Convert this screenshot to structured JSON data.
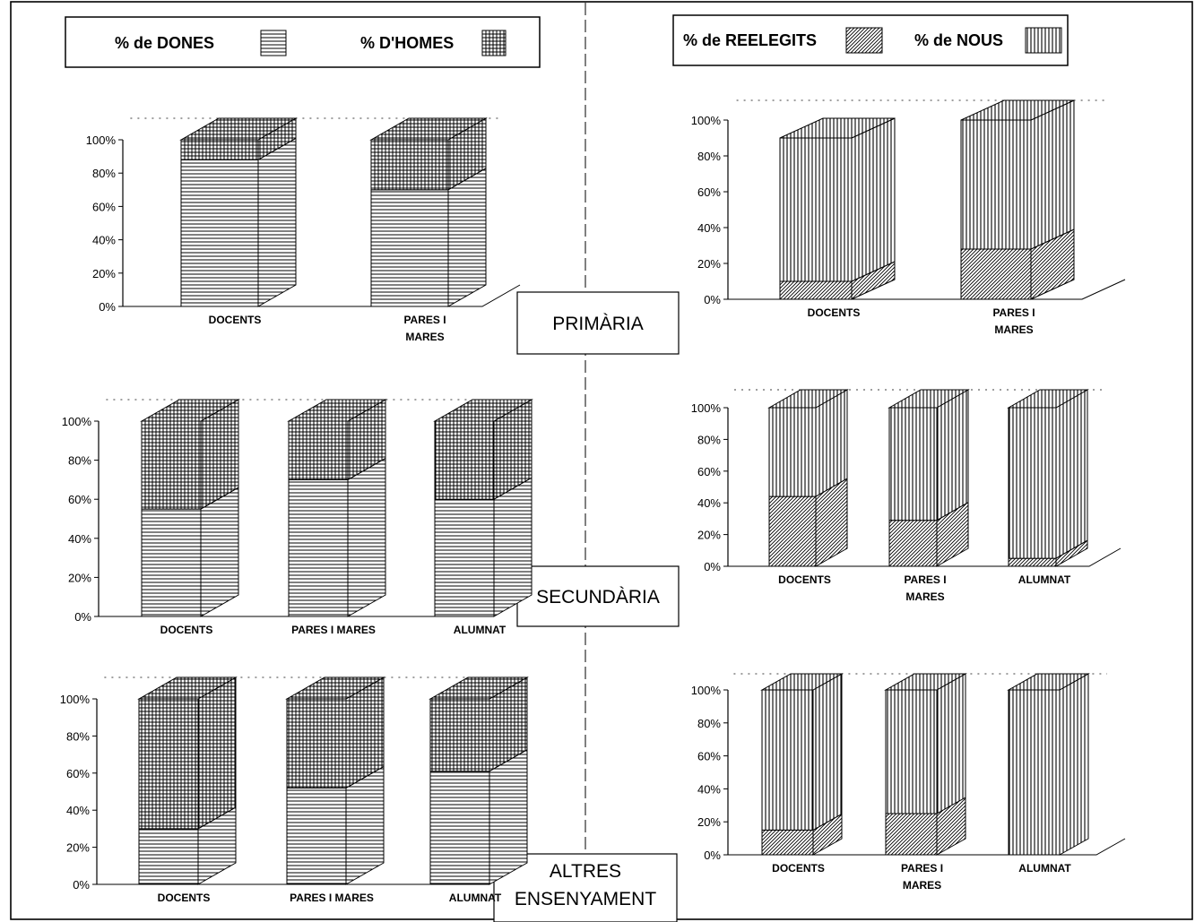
{
  "legends": {
    "gender": {
      "women_label": "% de DONES",
      "men_label": "% D'HOMES"
    },
    "election": {
      "reelected_label": "% de REELEGITS",
      "new_label": "% de NOUS"
    }
  },
  "levels": {
    "primaria": "PRIMÀRIA",
    "secundaria": "SECUNDÀRIA",
    "altres_line1": "ALTRES",
    "altres_line2": "ENSENYAMENT"
  },
  "chart_data": [
    {
      "id": "gender-primaria",
      "type": "bar",
      "stacked": true,
      "percent_stacked": true,
      "level": "PRIMÀRIA",
      "categories": [
        "DOCENTS",
        "PARES I MARES"
      ],
      "category_lines": [
        [
          "DOCENTS"
        ],
        [
          "PARES I",
          "MARES"
        ]
      ],
      "ylim": [
        0,
        100
      ],
      "yticks": [
        "0%",
        "20%",
        "40%",
        "60%",
        "80%",
        "100%"
      ],
      "series": [
        {
          "name": "% de DONES",
          "values": [
            88,
            70
          ],
          "pattern": "horizontal"
        },
        {
          "name": "% D'HOMES",
          "values": [
            12,
            30
          ],
          "pattern": "grid"
        }
      ]
    },
    {
      "id": "gender-secundaria",
      "type": "bar",
      "stacked": true,
      "percent_stacked": true,
      "level": "SECUNDÀRIA",
      "categories": [
        "DOCENTS",
        "PARES I MARES",
        "ALUMNAT"
      ],
      "category_lines": [
        [
          "DOCENTS"
        ],
        [
          "PARES I MARES"
        ],
        [
          "ALUMNAT"
        ]
      ],
      "ylim": [
        0,
        100
      ],
      "yticks": [
        "0%",
        "20%",
        "40%",
        "60%",
        "80%",
        "100%"
      ],
      "series": [
        {
          "name": "% de DONES",
          "values": [
            55,
            70,
            60
          ],
          "pattern": "horizontal"
        },
        {
          "name": "% D'HOMES",
          "values": [
            45,
            30,
            40
          ],
          "pattern": "grid"
        }
      ]
    },
    {
      "id": "gender-altres",
      "type": "bar",
      "stacked": true,
      "percent_stacked": true,
      "level": "ALTRES ENSENYAMENT",
      "categories": [
        "DOCENTS",
        "PARES I MARES",
        "ALUMNAT"
      ],
      "category_lines": [
        [
          "DOCENTS"
        ],
        [
          "PARES I MARES"
        ],
        [
          "ALUMNAT"
        ]
      ],
      "ylim": [
        0,
        100
      ],
      "yticks": [
        "0%",
        "20%",
        "40%",
        "60%",
        "80%",
        "100%"
      ],
      "series": [
        {
          "name": "% de DONES",
          "values": [
            30,
            52,
            61
          ],
          "pattern": "horizontal"
        },
        {
          "name": "% D'HOMES",
          "values": [
            70,
            48,
            39
          ],
          "pattern": "grid"
        }
      ]
    },
    {
      "id": "election-primaria",
      "type": "bar",
      "stacked": true,
      "percent_stacked": true,
      "level": "PRIMÀRIA",
      "categories": [
        "DOCENTS",
        "PARES I MARES"
      ],
      "category_lines": [
        [
          "DOCENTS"
        ],
        [
          "PARES I",
          "MARES"
        ]
      ],
      "ylim": [
        0,
        100
      ],
      "yticks": [
        "0%",
        "20%",
        "40%",
        "60%",
        "80%",
        "100%"
      ],
      "series": [
        {
          "name": "% de REELEGITS",
          "values": [
            10,
            28
          ],
          "pattern": "diagonal"
        },
        {
          "name": "% de NOUS",
          "values": [
            80,
            72
          ],
          "pattern": "vertical"
        }
      ]
    },
    {
      "id": "election-secundaria",
      "type": "bar",
      "stacked": true,
      "percent_stacked": true,
      "level": "SECUNDÀRIA",
      "categories": [
        "DOCENTS",
        "PARES I MARES",
        "ALUMNAT"
      ],
      "category_lines": [
        [
          "DOCENTS"
        ],
        [
          "PARES I",
          "MARES"
        ],
        [
          "ALUMNAT"
        ]
      ],
      "ylim": [
        0,
        100
      ],
      "yticks": [
        "0%",
        "20%",
        "40%",
        "60%",
        "80%",
        "100%"
      ],
      "series": [
        {
          "name": "% de REELEGITS",
          "values": [
            44,
            29,
            5
          ],
          "pattern": "diagonal"
        },
        {
          "name": "% de NOUS",
          "values": [
            56,
            71,
            95
          ],
          "pattern": "vertical"
        }
      ]
    },
    {
      "id": "election-altres",
      "type": "bar",
      "stacked": true,
      "percent_stacked": true,
      "level": "ALTRES ENSENYAMENT",
      "categories": [
        "DOCENTS",
        "PARES I MARES",
        "ALUMNAT"
      ],
      "category_lines": [
        [
          "DOCENTS"
        ],
        [
          "PARES I",
          "MARES"
        ],
        [
          "ALUMNAT"
        ]
      ],
      "ylim": [
        0,
        100
      ],
      "yticks": [
        "0%",
        "20%",
        "40%",
        "60%",
        "80%",
        "100%"
      ],
      "series": [
        {
          "name": "% de REELEGITS",
          "values": [
            15,
            25,
            0
          ],
          "pattern": "diagonal"
        },
        {
          "name": "% de NOUS",
          "values": [
            85,
            75,
            100
          ],
          "pattern": "vertical"
        }
      ]
    }
  ]
}
